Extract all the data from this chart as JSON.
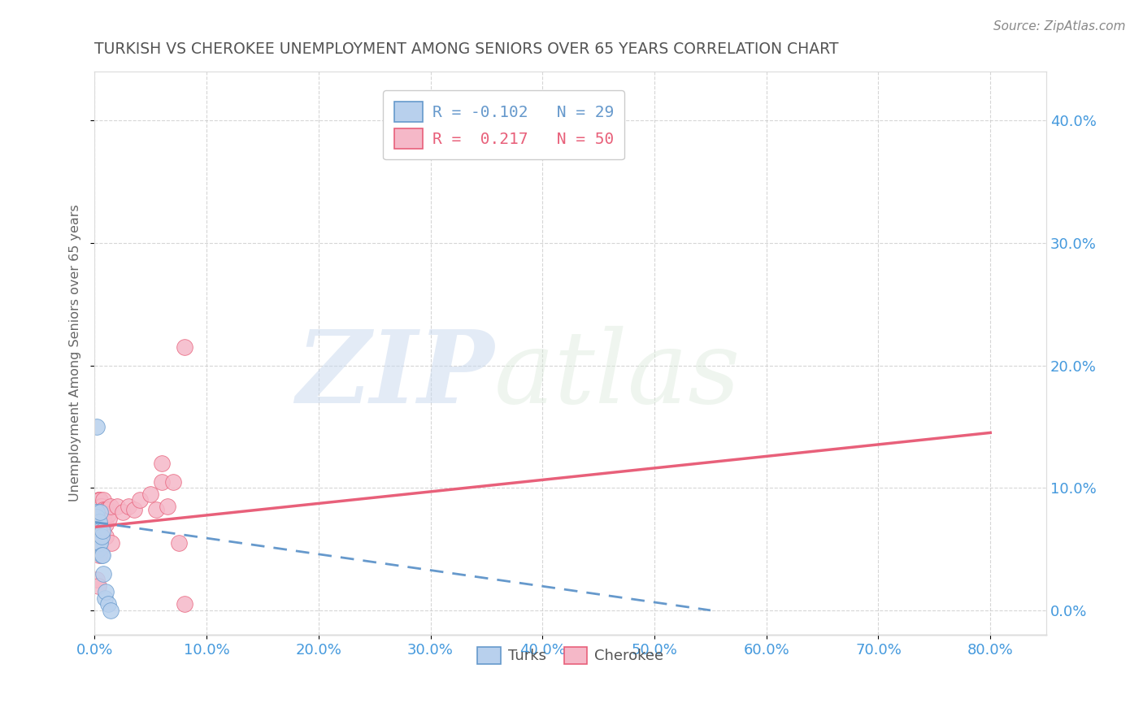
{
  "title": "TURKISH VS CHEROKEE UNEMPLOYMENT AMONG SENIORS OVER 65 YEARS CORRELATION CHART",
  "source": "Source: ZipAtlas.com",
  "ylabel": "Unemployment Among Seniors over 65 years",
  "xlim": [
    0.0,
    0.85
  ],
  "ylim": [
    -0.02,
    0.44
  ],
  "turks_R": -0.102,
  "turks_N": 29,
  "cherokee_R": 0.217,
  "cherokee_N": 50,
  "turks_color": "#b8d0ed",
  "cherokee_color": "#f5b8c8",
  "turks_edge_color": "#6699cc",
  "cherokee_edge_color": "#e8607a",
  "turks_line_color": "#6699cc",
  "cherokee_line_color": "#e8607a",
  "turks_x": [
    0.0,
    0.0,
    0.0,
    0.0,
    0.0,
    0.001,
    0.001,
    0.001,
    0.002,
    0.002,
    0.002,
    0.003,
    0.003,
    0.003,
    0.004,
    0.004,
    0.004,
    0.005,
    0.005,
    0.006,
    0.006,
    0.007,
    0.007,
    0.008,
    0.009,
    0.01,
    0.012,
    0.014,
    0.002
  ],
  "turks_y": [
    0.065,
    0.075,
    0.08,
    0.06,
    0.055,
    0.078,
    0.072,
    0.068,
    0.08,
    0.076,
    0.065,
    0.07,
    0.06,
    0.05,
    0.072,
    0.065,
    0.055,
    0.08,
    0.055,
    0.06,
    0.045,
    0.065,
    0.045,
    0.03,
    0.01,
    0.015,
    0.005,
    0.0,
    0.15
  ],
  "cherokee_x": [
    0.0,
    0.001,
    0.001,
    0.002,
    0.002,
    0.002,
    0.003,
    0.003,
    0.003,
    0.003,
    0.004,
    0.004,
    0.004,
    0.005,
    0.005,
    0.005,
    0.005,
    0.006,
    0.006,
    0.007,
    0.007,
    0.008,
    0.008,
    0.008,
    0.009,
    0.01,
    0.01,
    0.01,
    0.011,
    0.012,
    0.013,
    0.014,
    0.015,
    0.02,
    0.025,
    0.03,
    0.035,
    0.04,
    0.05,
    0.055,
    0.06,
    0.065,
    0.07,
    0.075,
    0.08,
    0.002,
    0.003,
    0.004,
    0.06,
    0.08
  ],
  "cherokee_y": [
    0.08,
    0.075,
    0.068,
    0.085,
    0.082,
    0.07,
    0.09,
    0.085,
    0.078,
    0.055,
    0.09,
    0.078,
    0.065,
    0.09,
    0.085,
    0.078,
    0.05,
    0.085,
    0.065,
    0.082,
    0.078,
    0.09,
    0.082,
    0.075,
    0.08,
    0.082,
    0.07,
    0.06,
    0.082,
    0.078,
    0.075,
    0.085,
    0.055,
    0.085,
    0.08,
    0.085,
    0.082,
    0.09,
    0.095,
    0.082,
    0.105,
    0.085,
    0.105,
    0.055,
    0.215,
    0.025,
    0.02,
    0.045,
    0.12,
    0.005
  ],
  "turks_line_x0": 0.0,
  "turks_line_y0": 0.072,
  "turks_line_x1": 0.55,
  "turks_line_y1": 0.0,
  "cherokee_line_x0": 0.0,
  "cherokee_line_y0": 0.068,
  "cherokee_line_x1": 0.8,
  "cherokee_line_y1": 0.145,
  "xticks": [
    0.0,
    0.1,
    0.2,
    0.3,
    0.4,
    0.5,
    0.6,
    0.7,
    0.8
  ],
  "xtick_labels": [
    "0.0%",
    "10.0%",
    "20.0%",
    "30.0%",
    "40.0%",
    "50.0%",
    "60.0%",
    "70.0%",
    "80.0%"
  ],
  "yticks": [
    0.0,
    0.1,
    0.2,
    0.3,
    0.4
  ],
  "ytick_labels": [
    "0.0%",
    "10.0%",
    "20.0%",
    "30.0%",
    "40.0%"
  ],
  "watermark_zip": "ZIP",
  "watermark_atlas": "atlas",
  "background_color": "#ffffff",
  "grid_color": "#cccccc",
  "title_color": "#555555",
  "tick_color": "#4499dd",
  "source_color": "#888888"
}
